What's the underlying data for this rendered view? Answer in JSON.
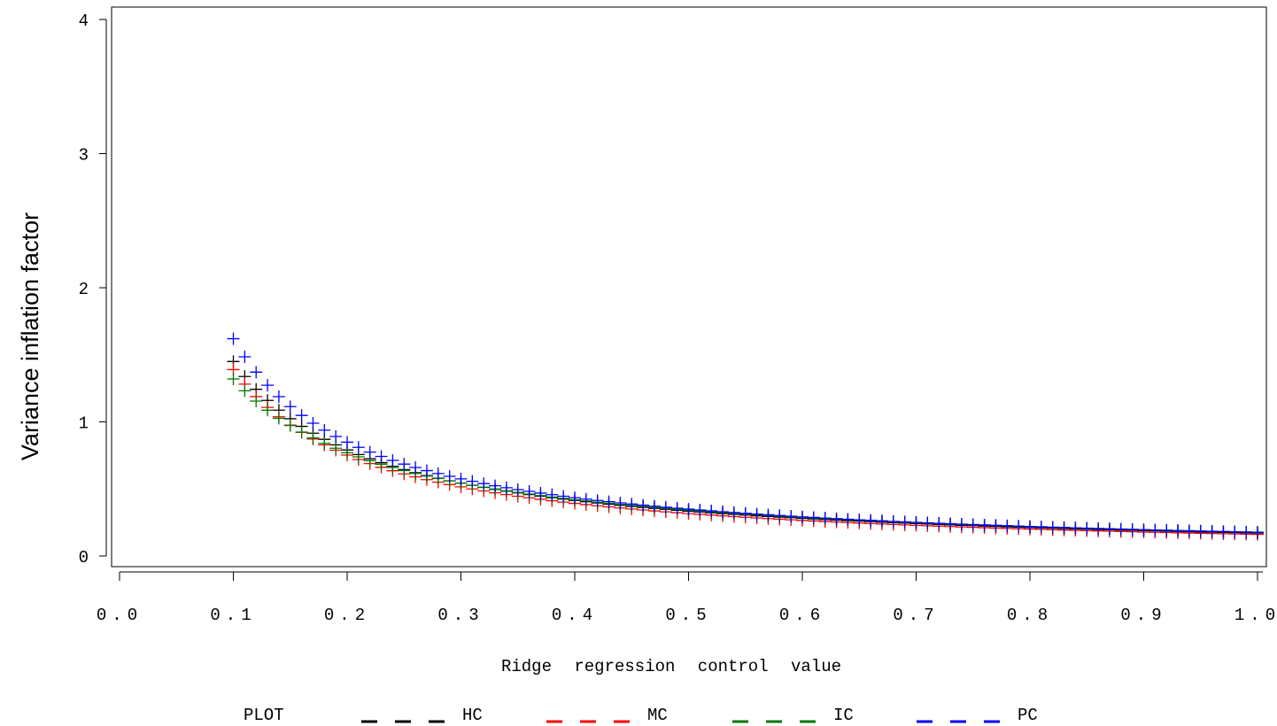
{
  "chart_data": {
    "type": "scatter",
    "title": "",
    "xlabel": "Ridge regression control value",
    "ylabel": "Variance inflation factor",
    "xlim": [
      0.0,
      1.0
    ],
    "ylim": [
      0,
      4
    ],
    "x_ticks": [
      "0.0",
      "0.1",
      "0.2",
      "0.3",
      "0.4",
      "0.5",
      "0.6",
      "0.7",
      "0.8",
      "0.9",
      "1.0"
    ],
    "y_ticks": [
      "0",
      "1",
      "2",
      "3",
      "4"
    ],
    "grid": false,
    "legend": {
      "title": "PLOT",
      "placement": "bottom"
    },
    "marker": "plus",
    "x_start": 0.1,
    "x_step": 0.01,
    "series": [
      {
        "name": "HC",
        "color": "#000000",
        "a": 0.45,
        "b": 0.02,
        "y_at_0_1": 1.45
      },
      {
        "name": "MC",
        "color": "#ff0000",
        "a": 0.41,
        "b": 0.018,
        "y_at_0_1": 1.39
      },
      {
        "name": "IC",
        "color": "#007800",
        "a": 0.35,
        "b": 0.04,
        "y_at_0_1": 1.32
      },
      {
        "name": "PC",
        "color": "#0000ff",
        "a": 0.56,
        "b": 0.01,
        "y_at_0_1": 1.62
      }
    ]
  }
}
